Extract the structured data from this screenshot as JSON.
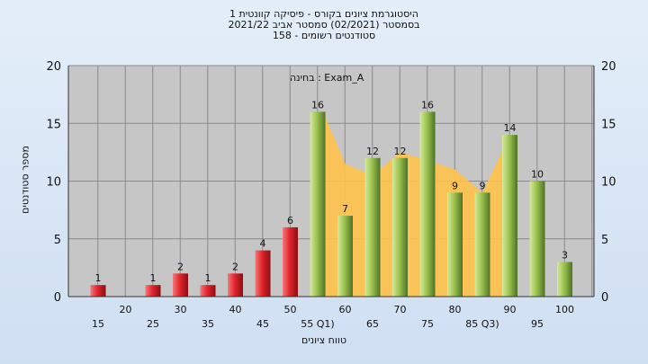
{
  "chart_data": {
    "type": "bar",
    "title": "היסטוגרמת ציונים בקורס - פיסיקה קוונטית 1",
    "subtitle_lines": [
      "בסמסטר  (02/2021)  סמסטר אביב 2021/22",
      "סטודנטים רשומים - 158"
    ],
    "ylabel": "מספר סטודנטים",
    "xlabel": "טווח ציונים",
    "exam_label": "בחינה : Exam_A",
    "ylim": [
      0,
      20
    ],
    "y_ticks": [
      0,
      5,
      10,
      15,
      20
    ],
    "x_ticks_lower": [
      "15",
      "25",
      "35",
      "45",
      "55 Q1)",
      "65",
      "75",
      "85 Q3)",
      "95"
    ],
    "x_ticks_upper": [
      "20",
      "30",
      "40",
      "50",
      "60",
      "70",
      "80",
      "90",
      "100"
    ],
    "categories": [
      "15",
      "20",
      "25",
      "30",
      "35",
      "40",
      "45",
      "50",
      "55",
      "60",
      "65",
      "70",
      "75",
      "80",
      "85",
      "90",
      "95",
      "100"
    ],
    "values": [
      1,
      0,
      1,
      2,
      1,
      2,
      4,
      6,
      16,
      7,
      12,
      12,
      16,
      9,
      9,
      14,
      10,
      3
    ],
    "bar_labels": [
      "1",
      "",
      "1",
      "2",
      "1",
      "2",
      "4",
      "6",
      "16",
      "7",
      "12",
      "12",
      "16",
      "9",
      "9",
      "14",
      "10",
      "3"
    ],
    "failing_color": "#e2262c",
    "passing_color": "#9cc350",
    "area_color": "#ffc24a",
    "grid": true
  }
}
